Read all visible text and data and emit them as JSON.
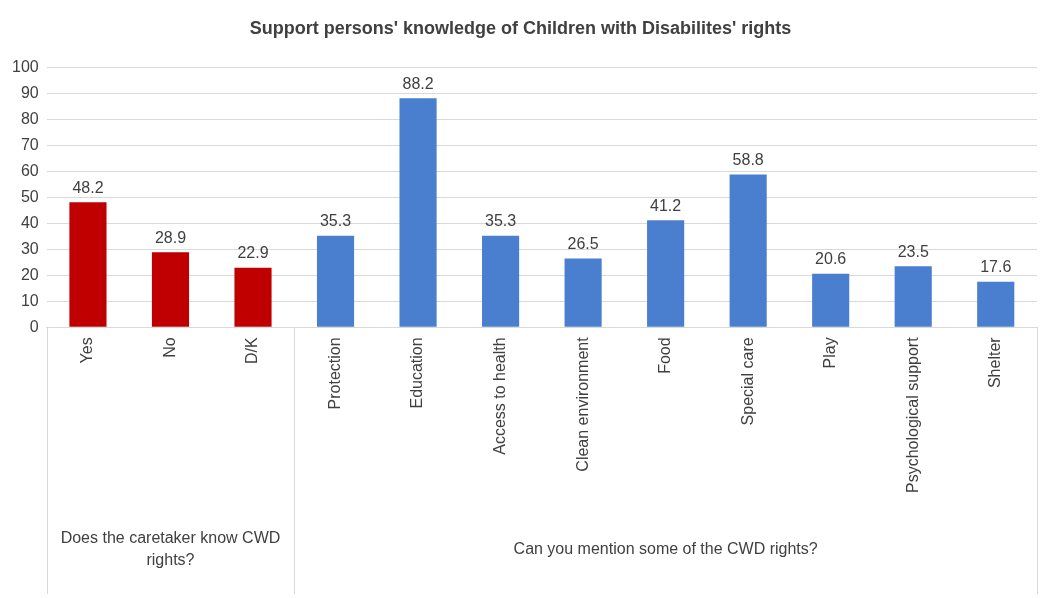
{
  "chart_data": {
    "type": "bar",
    "title": "Support persons' knowledge of Children with Disabilites' rights",
    "categories": [
      "Yes",
      "No",
      "D/K",
      "Protection",
      "Education",
      "Access to health",
      "Clean environment",
      "Food",
      "Special care",
      "Play",
      "Psychological support",
      "Shelter"
    ],
    "values": [
      48.2,
      28.9,
      22.9,
      35.3,
      88.2,
      35.3,
      26.5,
      41.2,
      58.8,
      20.6,
      23.5,
      17.6
    ],
    "colors": [
      "#c00000",
      "#c00000",
      "#c00000",
      "#4a7fcf",
      "#4a7fcf",
      "#4a7fcf",
      "#4a7fcf",
      "#4a7fcf",
      "#4a7fcf",
      "#4a7fcf",
      "#4a7fcf",
      "#4a7fcf"
    ],
    "ylim": [
      0,
      100
    ],
    "yticks": [
      0,
      10,
      20,
      30,
      40,
      50,
      60,
      70,
      80,
      90,
      100
    ],
    "grid": "y",
    "data_labels": true,
    "legend": false,
    "annotations": [
      "Does the caretaker know CWD rights?",
      "Can you mention some of the CWD rights?"
    ]
  }
}
